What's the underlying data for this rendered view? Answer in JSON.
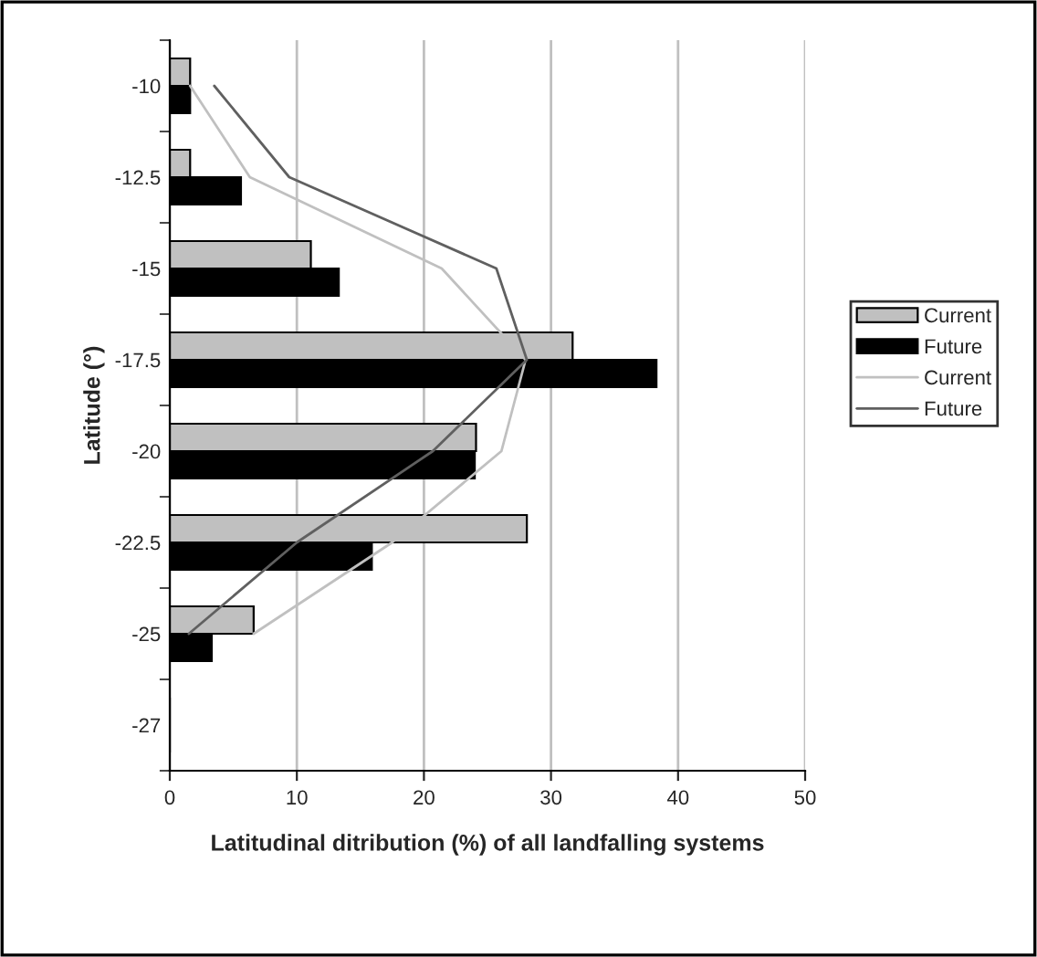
{
  "chart_data": {
    "type": "bar",
    "orientation": "horizontal",
    "xlabel": "Latitudinal ditribution (%) of all landfalling systems",
    "ylabel": "Latitude (°)",
    "categories": [
      "-10",
      "-12.5",
      "-15",
      "-17.5",
      "-20",
      "-22.5",
      "-25",
      "-27"
    ],
    "series": [
      {
        "name": "Current",
        "color": "#c0c0c0",
        "values": [
          1.6,
          1.6,
          11.1,
          31.7,
          24.1,
          28.1,
          6.6,
          0
        ]
      },
      {
        "name": "Future",
        "color": "#000000",
        "values": [
          1.6,
          5.6,
          13.3,
          38.3,
          24.0,
          15.9,
          3.3,
          0
        ]
      },
      {
        "name": "Current",
        "type": "line",
        "color": "#c0c0c0",
        "values": [
          1.6,
          6.3,
          21.4,
          28,
          26.1,
          17.5,
          6.6,
          null
        ]
      },
      {
        "name": "Future",
        "type": "line",
        "color": "#606060",
        "values": [
          3.5,
          9.4,
          25.7,
          28.1,
          20.7,
          10,
          1.5,
          null
        ]
      }
    ],
    "xlim": [
      0,
      50
    ],
    "xticks": [
      0,
      10,
      20,
      30,
      40,
      50
    ],
    "grid": "x",
    "legend": "right",
    "marker": "none",
    "line_style": "solid"
  }
}
